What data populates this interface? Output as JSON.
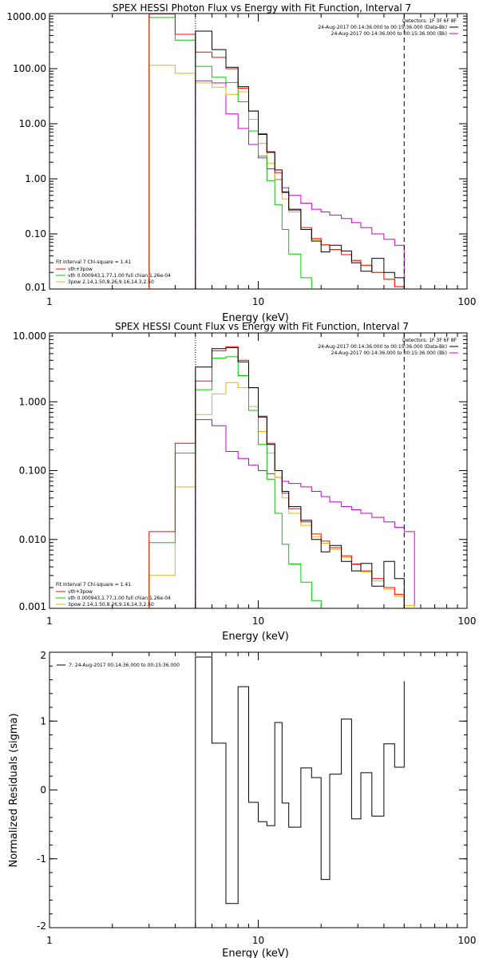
{
  "colors": {
    "data": "#000000",
    "total": "#ff0000",
    "thermal": "#00cc00",
    "powerlaw": "#e6b800",
    "background": "#cc00cc",
    "marker_left": "#000000"
  },
  "chart_data": [
    {
      "type": "line",
      "title": "SPEX HESSI Photon Flux vs Energy with Fit Function, Interval 7",
      "xlabel": "Energy (keV)",
      "ylabel": "",
      "xscale": "log",
      "yscale": "log",
      "xlim": [
        1,
        100
      ],
      "ylim": [
        0.01,
        1000
      ],
      "xticks": [
        1,
        10,
        100
      ],
      "xtick_labels": [
        "1",
        "10",
        "100"
      ],
      "yticks": [
        0.01,
        0.1,
        1,
        10,
        100,
        1000
      ],
      "ytick_labels": [
        "0.01",
        "0.10",
        "1.00",
        "10.00",
        "100.00",
        "1000.00"
      ],
      "markers": {
        "fit_low": 5,
        "fit_high": 50
      },
      "legend_topright": [
        "Detectors: 1F 3F 6F 8F",
        "24-Aug-2017 00:14:36.000 to 00:15:36.000 (Data-Bk)",
        "24-Aug-2017 00:14:36.000 to 00:15:36.000 (Bk)"
      ],
      "legend_bottomleft": [
        "Fit Interval  7   Chi-square = 1.41",
        "vth+3pow",
        "vth 0.000943,1.77,1.00  full chian 1.26e-04",
        "3pow 2.14,1.50,8.26,9.16,14.3,2.50"
      ],
      "edges": [
        3,
        4,
        5,
        6,
        7,
        8,
        9,
        10,
        11,
        12,
        13,
        14,
        16,
        18,
        20,
        22,
        25,
        28,
        31,
        35,
        40,
        45,
        50,
        56
      ],
      "series": [
        {
          "name": "24-Aug-2017 00:14:36.000 to 00:15:36.000 (Data-Bk)",
          "role": "data",
          "values": [
            null,
            null,
            480,
            222,
            106,
            47,
            17,
            6.4,
            3.1,
            1.45,
            0.58,
            0.28,
            0.12,
            0.074,
            0.047,
            0.062,
            0.049,
            0.03,
            0.021,
            0.036,
            0.02,
            0.016,
            null
          ]
        },
        {
          "name": "vth+3pow",
          "role": "total",
          "values": [
            980,
            420,
            200,
            160,
            100,
            44,
            17,
            6.6,
            3.0,
            1.3,
            0.56,
            0.27,
            0.13,
            0.082,
            0.063,
            0.052,
            0.042,
            0.033,
            0.027,
            0.02,
            0.015,
            0.011,
            null
          ]
        },
        {
          "name": "vth 0.000943,1.77,1.00  full chian 1.26e-04",
          "role": "thermal",
          "values": [
            850,
            330,
            110,
            70,
            56,
            25,
            7.4,
            2.6,
            0.93,
            0.34,
            0.12,
            0.043,
            0.016,
            null,
            null,
            null,
            null,
            null,
            null,
            null,
            null,
            null,
            null
          ]
        },
        {
          "name": "3pow 2.14,1.50,8.26,9.16,14.3,2.50",
          "role": "powerlaw",
          "values": [
            115,
            82,
            55,
            46,
            34,
            38,
            12,
            4.4,
            1.9,
            0.96,
            0.43,
            0.25,
            0.12,
            0.079,
            0.063,
            0.052,
            0.042,
            0.033,
            0.027,
            0.02,
            0.015,
            0.011,
            null
          ]
        },
        {
          "name": "24-Aug-2017 00:14:36.000 to 00:15:36.000 (Bk)",
          "role": "background",
          "values": [
            null,
            null,
            60,
            55,
            15,
            8.2,
            4.2,
            2.4,
            1.52,
            0.97,
            0.69,
            0.5,
            0.36,
            0.28,
            0.25,
            0.22,
            0.19,
            0.16,
            0.13,
            0.1,
            0.08,
            0.062,
            null
          ]
        }
      ]
    },
    {
      "type": "line",
      "title": "SPEX HESSI Count Flux vs Energy with Fit Function, Interval 7",
      "xlabel": "Energy (keV)",
      "ylabel": "",
      "xscale": "log",
      "yscale": "log",
      "xlim": [
        1,
        100
      ],
      "ylim": [
        0.001,
        10
      ],
      "xticks": [
        1,
        10,
        100
      ],
      "xtick_labels": [
        "1",
        "10",
        "100"
      ],
      "yticks": [
        0.001,
        0.01,
        0.1,
        1,
        10
      ],
      "ytick_labels": [
        "0.001",
        "0.010",
        "0.100",
        "1.000",
        "10.000"
      ],
      "markers": {
        "fit_low": 5,
        "fit_high": 50
      },
      "legend_topright": [
        "Detectors: 1F 3F 6F 8F",
        "24-Aug-2017 00:14:36.000 to 00:15:36.000 (Data-Bk)",
        "24-Aug-2017 00:14:36.000 to 00:15:36.000 (Bk)"
      ],
      "legend_bottomleft": [
        "Fit Interval  7   Chi-square = 1.41",
        "vth+3pow",
        "vth 0.000943,1.77,1.00  full chian 1.26e-04",
        "3pow 2.14,1.50,8.26,9.16,14.3,2.50"
      ],
      "edges": [
        3,
        4,
        5,
        6,
        7,
        8,
        9,
        10,
        11,
        12,
        13,
        14,
        16,
        18,
        20,
        22,
        25,
        28,
        31,
        35,
        40,
        45,
        50,
        56,
        62
      ],
      "series": [
        {
          "name": "24-Aug-2017 00:14:36.000 to 00:15:36.000 (Data-Bk)",
          "role": "data",
          "values": [
            null,
            null,
            3.2,
            5.9,
            6.1,
            3.8,
            1.6,
            0.6,
            0.24,
            0.1,
            0.05,
            0.03,
            0.019,
            0.01,
            0.0066,
            0.0082,
            0.0048,
            0.0035,
            0.0045,
            0.0021,
            0.0048,
            0.0027,
            null,
            null
          ]
        },
        {
          "name": "vth+3pow",
          "role": "total",
          "values": [
            0.013,
            0.25,
            2.0,
            5.5,
            6.3,
            4.0,
            1.6,
            0.62,
            0.25,
            0.1,
            0.047,
            0.028,
            0.018,
            0.012,
            0.0095,
            0.0076,
            0.0058,
            0.0044,
            0.0035,
            0.0027,
            0.002,
            0.0016,
            null,
            null
          ]
        },
        {
          "name": "vth 0.000943,1.77,1.00  full chian 1.26e-04",
          "role": "thermal",
          "values": [
            0.009,
            0.18,
            1.5,
            4.3,
            4.5,
            2.4,
            0.75,
            0.24,
            0.075,
            0.024,
            0.0085,
            0.0044,
            0.0024,
            0.0013,
            null,
            null,
            null,
            null,
            null,
            null,
            null,
            null,
            null,
            null
          ]
        },
        {
          "name": "3pow 2.14,1.50,8.26,9.16,14.3,2.50",
          "role": "powerlaw",
          "values": [
            0.003,
            0.058,
            0.65,
            1.3,
            1.9,
            1.6,
            0.85,
            0.37,
            0.18,
            0.08,
            0.04,
            0.024,
            0.016,
            0.011,
            0.0088,
            0.0072,
            0.0055,
            0.0043,
            0.0034,
            0.0025,
            0.0019,
            0.0015,
            0.0011,
            null
          ]
        },
        {
          "name": "24-Aug-2017 00:14:36.000 to 00:15:36.000 (Bk)",
          "role": "background",
          "values": [
            null,
            null,
            0.55,
            0.45,
            0.19,
            0.15,
            0.12,
            0.1,
            0.09,
            0.08,
            0.07,
            0.065,
            0.058,
            0.05,
            0.042,
            0.035,
            0.03,
            0.027,
            0.024,
            0.021,
            0.018,
            0.015,
            0.013,
            null
          ]
        }
      ]
    },
    {
      "type": "line",
      "title": "",
      "xlabel": "Energy (keV)",
      "ylabel": "Normalized Residuals (sigma)",
      "xscale": "log",
      "yscale": "linear",
      "xlim": [
        1,
        100
      ],
      "ylim": [
        -2,
        2
      ],
      "xticks": [
        1,
        10,
        100
      ],
      "xtick_labels": [
        "1",
        "10",
        "100"
      ],
      "yticks": [
        -2,
        -1,
        0,
        1,
        2
      ],
      "ytick_labels": [
        "-2",
        "-1",
        "0",
        "1",
        "2"
      ],
      "legend": [
        "7: 24-Aug-2017 00:14:36.000 to 00:15:36.000"
      ],
      "edges": [
        5,
        6,
        7,
        8,
        9,
        10,
        11,
        12,
        13,
        14,
        16,
        18,
        20,
        22,
        25,
        28,
        31,
        35,
        40,
        45,
        50
      ],
      "series": [
        {
          "name": "7: 24-Aug-2017 00:14:36.000 to 00:15:36.000",
          "values": [
            1.93,
            0.68,
            -1.65,
            1.5,
            -0.18,
            -0.46,
            -0.52,
            0.98,
            -0.19,
            -0.54,
            0.32,
            0.18,
            -1.3,
            0.23,
            1.03,
            -0.42,
            0.25,
            -0.38,
            0.67,
            0.33,
            1.58
          ]
        }
      ]
    }
  ]
}
